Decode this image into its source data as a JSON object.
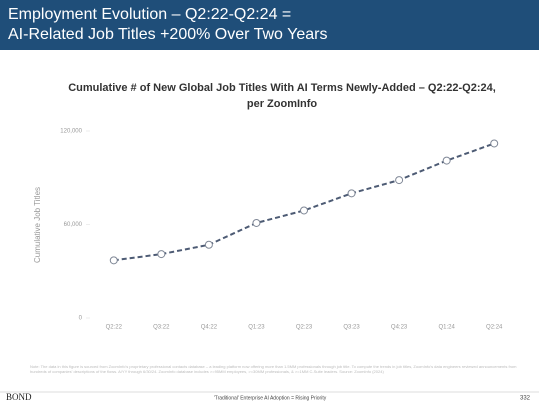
{
  "header": {
    "title_lines": [
      "Employment Evolution – Q2:22-Q2:24 =",
      "AI-Related Job Titles +200% Over Two Years"
    ]
  },
  "chart_data": {
    "type": "line",
    "title_lines": [
      "Cumulative # of New Global Job Titles With AI Terms Newly-Added – Q2:22-Q2:24,",
      "per ZoomInfo"
    ],
    "ylabel": "Cumulative Job Titles",
    "categories": [
      "Q2:22",
      "Q3:22",
      "Q4:22",
      "Q1:23",
      "Q2:23",
      "Q3:23",
      "Q4:23",
      "Q1:24",
      "Q2:24"
    ],
    "values": [
      37000,
      41000,
      47000,
      61000,
      69000,
      80000,
      88500,
      101000,
      112000
    ],
    "color": "#4d5b74",
    "ylim": [
      0,
      120000
    ],
    "yticks": [
      0,
      {
        "value": 60000,
        "label": "60,000"
      },
      {
        "value": 120000,
        "label": "120,000"
      }
    ],
    "grid": false
  },
  "note": "Note: The data in this figure is sourced from ZoomInfo's proprietary professional contacts database – a leading platform now offering more than 1.5MM professionals through job title. To compute the trends in job titles, ZoomInfo's data engineers reviewed announcements from hundreds of companies' descriptions of the flows. A/YY through 6/30/24. ZoomInfo database includes >=95MM employees, >=30MM professionals, & >=1MM C-Suite leaders. Source: ZoomInfo (2024)",
  "footer": {
    "brand": "BOND",
    "caption": "'Traditional' Enterprise AI Adoption = Rising Priority",
    "page": "332"
  }
}
